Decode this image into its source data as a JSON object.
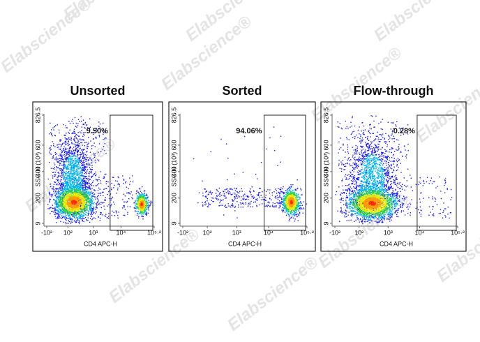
{
  "watermark": "Elabscience®",
  "chart_data": [
    {
      "type": "scatter",
      "title": "Unsorted",
      "annotation": "9.50%",
      "x_label": "CD4 APC-H",
      "y_label": "SSC-H (10³)",
      "xlim": [
        -100,
        158489
      ],
      "xticks": [
        {
          "value": -100,
          "label": "-10²"
        },
        {
          "value": 100,
          "label": "10²"
        },
        {
          "value": 1000,
          "label": "10³"
        },
        {
          "value": 10000,
          "label": "10⁴"
        },
        {
          "value": 158489,
          "label": "10⁵·²"
        }
      ],
      "ylim": [
        9,
        826.5
      ],
      "yticks": [
        9,
        200,
        400,
        600,
        826.5
      ]
    },
    {
      "type": "scatter",
      "title": "Sorted",
      "annotation": "94.06%",
      "x_label": "CD4 APC-H",
      "y_label": "SSC-H (10³)",
      "xlim": [
        -100,
        158489
      ],
      "xticks": [
        {
          "value": -100,
          "label": "-10²"
        },
        {
          "value": 100,
          "label": "10²"
        },
        {
          "value": 1000,
          "label": "10³"
        },
        {
          "value": 10000,
          "label": "10⁴"
        },
        {
          "value": 158489,
          "label": "10⁵·²"
        }
      ],
      "ylim": [
        9,
        826.5
      ],
      "yticks": [
        9,
        200,
        400,
        600,
        826.5
      ]
    },
    {
      "type": "scatter",
      "title": "Flow-through",
      "annotation": "0.28%",
      "x_label": "CD4 APC-H",
      "y_label": "SSC-H (10³)",
      "xlim": [
        -100,
        158489
      ],
      "xticks": [
        {
          "value": -100,
          "label": "-10²"
        },
        {
          "value": 100,
          "label": "10²"
        },
        {
          "value": 1000,
          "label": "10³"
        },
        {
          "value": 10000,
          "label": "10⁴"
        },
        {
          "value": 158489,
          "label": "10⁵·²"
        }
      ],
      "ylim": [
        9,
        826.5
      ],
      "yticks": [
        9,
        200,
        400,
        600,
        826.5
      ]
    }
  ]
}
